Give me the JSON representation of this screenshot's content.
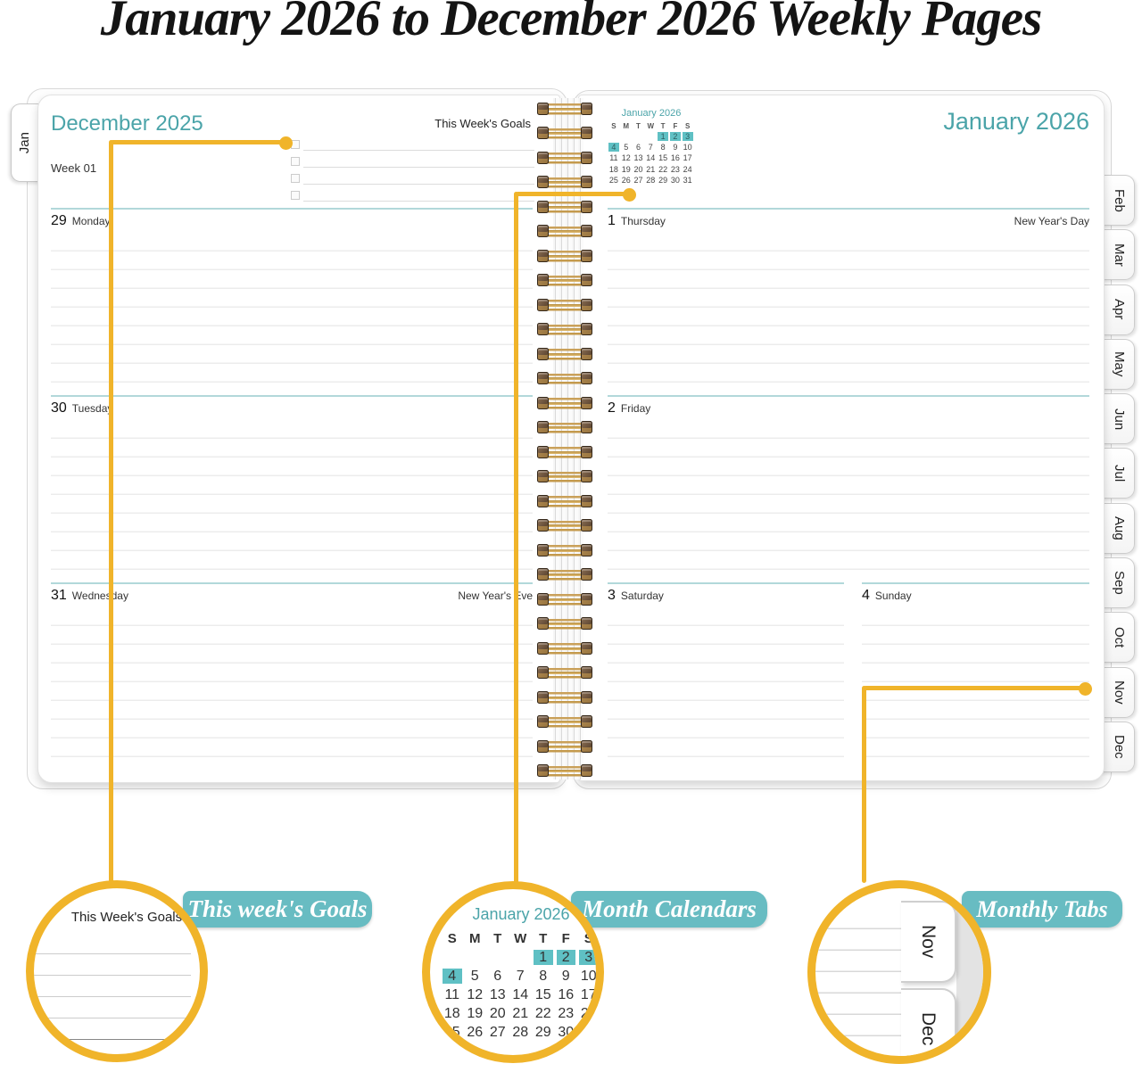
{
  "title": "January 2026 to December 2026 Weekly Pages",
  "left_page": {
    "tab": "Jan",
    "month_title": "December 2025",
    "week_label": "Week 01",
    "goals_title": "This Week's Goals",
    "days": [
      {
        "num": "29",
        "name": "Monday",
        "note": ""
      },
      {
        "num": "30",
        "name": "Tuesday",
        "note": ""
      },
      {
        "num": "31",
        "name": "Wednesday",
        "note": "New Year's Eve"
      }
    ]
  },
  "right_page": {
    "month_title": "January 2026",
    "tabs": [
      "Feb",
      "Mar",
      "Apr",
      "May",
      "Jun",
      "Jul",
      "Aug",
      "Sep",
      "Oct",
      "Nov",
      "Dec"
    ],
    "days": [
      {
        "num": "1",
        "name": "Thursday",
        "note": "New Year's Day"
      },
      {
        "num": "2",
        "name": "Friday",
        "note": ""
      },
      {
        "num": "3",
        "name": "Saturday",
        "note": ""
      },
      {
        "num": "4",
        "name": "Sunday",
        "note": ""
      }
    ]
  },
  "calendar": {
    "title": "January 2026",
    "weekdays": [
      "S",
      "M",
      "T",
      "W",
      "T",
      "F",
      "S"
    ],
    "cells": [
      {
        "d": ""
      },
      {
        "d": ""
      },
      {
        "d": ""
      },
      {
        "d": ""
      },
      {
        "d": "1",
        "hl": true
      },
      {
        "d": "2",
        "hl": true
      },
      {
        "d": "3",
        "hl": true
      },
      {
        "d": "4",
        "hl": true
      },
      {
        "d": "5"
      },
      {
        "d": "6"
      },
      {
        "d": "7"
      },
      {
        "d": "8"
      },
      {
        "d": "9"
      },
      {
        "d": "10"
      },
      {
        "d": "11"
      },
      {
        "d": "12"
      },
      {
        "d": "13"
      },
      {
        "d": "14"
      },
      {
        "d": "15"
      },
      {
        "d": "16"
      },
      {
        "d": "17"
      },
      {
        "d": "18"
      },
      {
        "d": "19"
      },
      {
        "d": "20"
      },
      {
        "d": "21"
      },
      {
        "d": "22"
      },
      {
        "d": "23"
      },
      {
        "d": "24"
      },
      {
        "d": "25"
      },
      {
        "d": "26"
      },
      {
        "d": "27"
      },
      {
        "d": "28"
      },
      {
        "d": "29"
      },
      {
        "d": "30"
      },
      {
        "d": "31"
      }
    ]
  },
  "callouts": {
    "goals_label": "This week's Goals",
    "calendars_label": "Month Calendars",
    "tabs_label": "Monthly Tabs",
    "goals_preview_title": "This Week's Goals",
    "preview_tabs": [
      "Nov",
      "Dec"
    ]
  },
  "colors": {
    "teal_heading": "#4BA4A9",
    "teal_highlight": "#5FC0C4",
    "label_teal": "#68BCC2",
    "callout_yellow": "#F0B42A",
    "spiral_gold": "#D3A452"
  }
}
